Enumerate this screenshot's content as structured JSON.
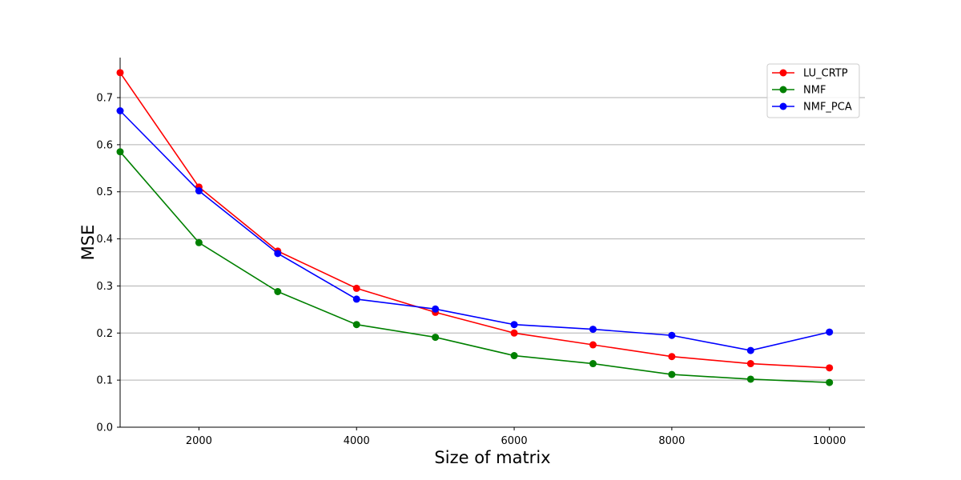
{
  "chart_data": {
    "type": "line",
    "title": "",
    "xlabel": "Size of matrix",
    "ylabel": "MSE",
    "x": [
      1000,
      2000,
      3000,
      4000,
      5000,
      6000,
      7000,
      8000,
      9000,
      10000
    ],
    "xlim": [
      1000,
      10450
    ],
    "ylim": [
      0,
      0.785
    ],
    "xticks": [
      2000,
      4000,
      6000,
      8000,
      10000
    ],
    "yticks": [
      0.0,
      0.1,
      0.2,
      0.3,
      0.4,
      0.5,
      0.6,
      0.7
    ],
    "xtick_labels": [
      "2000",
      "4000",
      "6000",
      "8000",
      "10000"
    ],
    "ytick_labels": [
      "0.0",
      "0.1",
      "0.2",
      "0.3",
      "0.4",
      "0.5",
      "0.6",
      "0.7"
    ],
    "grid": "horizontal",
    "legend_position": "top-right",
    "series": [
      {
        "name": "LU_CRTP",
        "color": "#ff0000",
        "marker": "circle",
        "values": [
          0.753,
          0.51,
          0.374,
          0.295,
          0.244,
          0.2,
          0.175,
          0.15,
          0.135,
          0.126
        ]
      },
      {
        "name": "NMF",
        "color": "#008000",
        "marker": "circle",
        "values": [
          0.585,
          0.392,
          0.288,
          0.218,
          0.191,
          0.152,
          0.135,
          0.112,
          0.102,
          0.095
        ]
      },
      {
        "name": "NMF_PCA",
        "color": "#0000ff",
        "marker": "circle",
        "values": [
          0.672,
          0.502,
          0.369,
          0.272,
          0.251,
          0.218,
          0.208,
          0.195,
          0.163,
          0.202
        ]
      }
    ]
  }
}
